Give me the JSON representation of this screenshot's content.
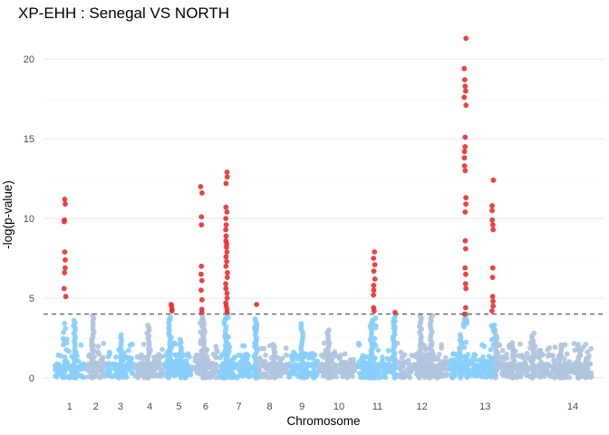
{
  "chart_data": {
    "type": "scatter",
    "title": "XP-EHH : Senegal VS NORTH",
    "xlabel": "Chromosome",
    "ylabel": "-log(p-value)",
    "ylim": [
      -0.8,
      22
    ],
    "yticks": [
      0,
      5,
      10,
      15,
      20
    ],
    "grid": true,
    "threshold": 4,
    "colors": {
      "odd": "#87cefa",
      "even": "#b0c4de",
      "significant": "#ee2c2c"
    },
    "chromosomes": [
      {
        "label": "1",
        "start": 0.0,
        "end": 1.0
      },
      {
        "label": "2",
        "start": 1.0,
        "end": 1.7
      },
      {
        "label": "3",
        "start": 1.7,
        "end": 2.6
      },
      {
        "label": "4",
        "start": 2.6,
        "end": 3.55
      },
      {
        "label": "5",
        "start": 3.55,
        "end": 4.5
      },
      {
        "label": "6",
        "start": 4.5,
        "end": 5.35
      },
      {
        "label": "7",
        "start": 5.35,
        "end": 6.6
      },
      {
        "label": "8",
        "start": 6.6,
        "end": 7.6
      },
      {
        "label": "9",
        "start": 7.6,
        "end": 8.6
      },
      {
        "label": "10",
        "start": 8.6,
        "end": 9.85
      },
      {
        "label": "11",
        "start": 9.85,
        "end": 11.1
      },
      {
        "label": "12",
        "start": 11.1,
        "end": 12.8
      },
      {
        "label": "13",
        "start": 12.8,
        "end": 14.3
      },
      {
        "label": "14",
        "start": 14.3,
        "end": 17.5
      }
    ],
    "tick_positions": [
      {
        "label": "1",
        "x": 0.5
      },
      {
        "label": "2",
        "x": 1.35
      },
      {
        "label": "3",
        "x": 2.15
      },
      {
        "label": "4",
        "x": 3.1
      },
      {
        "label": "5",
        "x": 4.05
      },
      {
        "label": "6",
        "x": 4.92
      },
      {
        "label": "7",
        "x": 6.0
      },
      {
        "label": "8",
        "x": 7.0
      },
      {
        "label": "9",
        "x": 8.05
      },
      {
        "label": "10",
        "x": 9.25
      },
      {
        "label": "11",
        "x": 10.5
      },
      {
        "label": "12",
        "x": 11.95
      },
      {
        "label": "13",
        "x": 14.0
      },
      {
        "label": "14",
        "x": 16.85
      }
    ],
    "significant_points": [
      {
        "x": 0.35,
        "y": [
          11.2,
          10.9,
          9.9,
          9.8,
          7.9,
          7.4,
          6.9,
          6.6,
          5.6,
          5.1
        ]
      },
      {
        "x": 3.8,
        "y": [
          4.6,
          4.5,
          4.3,
          4.2
        ]
      },
      {
        "x": 4.78,
        "y": [
          12.0,
          11.6,
          10.1,
          9.6,
          7.0,
          6.5,
          6.1,
          5.5,
          4.9,
          4.3,
          4.1
        ]
      },
      {
        "x": 5.6,
        "y": [
          12.9,
          12.6,
          12.2,
          10.7,
          10.4,
          10.0,
          9.6,
          9.3,
          8.9,
          8.6,
          8.4,
          8.2,
          7.9,
          7.6,
          7.3,
          7.0,
          6.6,
          6.3,
          5.9,
          5.6,
          5.3,
          5.0,
          4.7,
          4.5,
          4.3,
          4.1
        ]
      },
      {
        "x": 6.55,
        "y": [
          4.6
        ]
      },
      {
        "x": 10.4,
        "y": [
          7.9,
          7.5,
          7.1,
          6.7,
          6.2,
          5.8,
          5.5,
          5.2,
          4.4,
          4.2
        ]
      },
      {
        "x": 11.05,
        "y": [
          4.1
        ]
      },
      {
        "x": 13.35,
        "y": [
          21.3,
          19.4,
          18.7,
          18.3,
          18.0,
          17.6,
          17.1,
          15.1,
          14.5,
          14.2,
          13.8,
          13.3,
          13.0,
          11.3,
          10.9,
          10.4,
          8.6,
          8.1,
          6.9,
          6.5,
          5.9,
          5.6,
          4.4,
          4.0
        ]
      },
      {
        "x": 14.25,
        "y": [
          12.4,
          10.8,
          10.5,
          9.9,
          9.6,
          9.3,
          6.9,
          6.3,
          5.1,
          4.8,
          4.5,
          4.2
        ]
      }
    ],
    "background_peaks": [
      {
        "x": 0.65,
        "y": 3.6
      },
      {
        "x": 1.25,
        "y": 3.9
      },
      {
        "x": 2.15,
        "y": 2.7
      },
      {
        "x": 3.05,
        "y": 3.3
      },
      {
        "x": 3.75,
        "y": 3.8
      },
      {
        "x": 4.1,
        "y": 2.4
      },
      {
        "x": 4.85,
        "y": 3.9
      },
      {
        "x": 5.55,
        "y": 3.7
      },
      {
        "x": 6.55,
        "y": 3.7
      },
      {
        "x": 7.15,
        "y": 2.1
      },
      {
        "x": 8.05,
        "y": 3.4
      },
      {
        "x": 8.9,
        "y": 3.0
      },
      {
        "x": 10.3,
        "y": 3.4
      },
      {
        "x": 11.05,
        "y": 3.9
      },
      {
        "x": 11.9,
        "y": 3.9
      },
      {
        "x": 12.25,
        "y": 3.9
      },
      {
        "x": 13.2,
        "y": 2.7
      },
      {
        "x": 14.35,
        "y": 3.0
      },
      {
        "x": 14.9,
        "y": 2.2
      },
      {
        "x": 15.55,
        "y": 2.8
      },
      {
        "x": 16.45,
        "y": 2.0
      },
      {
        "x": 17.05,
        "y": 2.1
      }
    ]
  }
}
